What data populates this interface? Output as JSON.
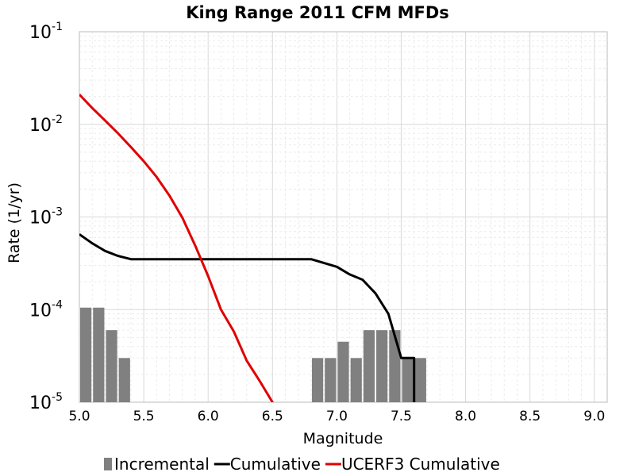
{
  "chart_data": {
    "type": "line",
    "title": "King Range 2011 CFM MFDs",
    "xlabel": "Magnitude",
    "ylabel": "Rate (1/yr)",
    "xlim": [
      5.0,
      9.1
    ],
    "ylim": [
      1e-05,
      0.1
    ],
    "yscale": "log",
    "grid": true,
    "legend_position": "bottom",
    "x_ticks": [
      "5.0",
      "5.5",
      "6.0",
      "6.5",
      "7.0",
      "7.5",
      "8.0",
      "8.5",
      "9.0"
    ],
    "y_ticks": [
      {
        "base": "10",
        "exp": "-5",
        "value": 1e-05
      },
      {
        "base": "10",
        "exp": "-4",
        "value": 0.0001
      },
      {
        "base": "10",
        "exp": "-3",
        "value": 0.001
      },
      {
        "base": "10",
        "exp": "-2",
        "value": 0.01
      },
      {
        "base": "10",
        "exp": "-1",
        "value": 0.1
      }
    ],
    "series": [
      {
        "name": "Incremental",
        "kind": "bar",
        "color": "#808080",
        "bar_width": 0.1,
        "x": [
          5.05,
          5.15,
          5.25,
          5.35,
          6.85,
          6.95,
          7.05,
          7.15,
          7.25,
          7.35,
          7.45,
          7.55,
          7.65
        ],
        "y": [
          0.000105,
          0.000105,
          6e-05,
          3e-05,
          3e-05,
          3e-05,
          4.5e-05,
          3e-05,
          6e-05,
          6e-05,
          6e-05,
          3e-05,
          3e-05
        ]
      },
      {
        "name": "Cumulative",
        "kind": "line",
        "color": "#000000",
        "x": [
          5.0,
          5.1,
          5.2,
          5.3,
          5.4,
          6.8,
          7.0,
          7.1,
          7.2,
          7.3,
          7.4,
          7.5,
          7.6,
          7.6,
          7.61
        ],
        "y": [
          0.00065,
          0.00052,
          0.00043,
          0.00038,
          0.00035,
          0.00035,
          0.00029,
          0.00024,
          0.00021,
          0.00015,
          9e-05,
          3e-05,
          3e-05,
          1e-05,
          1e-05
        ]
      },
      {
        "name": "UCERF3 Cumulative",
        "kind": "line",
        "color": "#e00000",
        "x": [
          5.0,
          5.1,
          5.2,
          5.3,
          5.4,
          5.5,
          5.6,
          5.7,
          5.8,
          5.9,
          6.0,
          6.1,
          6.2,
          6.3,
          6.4,
          6.5,
          6.6
        ],
        "y": [
          0.021,
          0.015,
          0.011,
          0.008,
          0.0057,
          0.004,
          0.0027,
          0.0017,
          0.00098,
          0.00049,
          0.00023,
          0.0001,
          5.8e-05,
          2.8e-05,
          1.7e-05,
          1e-05,
          6e-06
        ]
      }
    ]
  }
}
